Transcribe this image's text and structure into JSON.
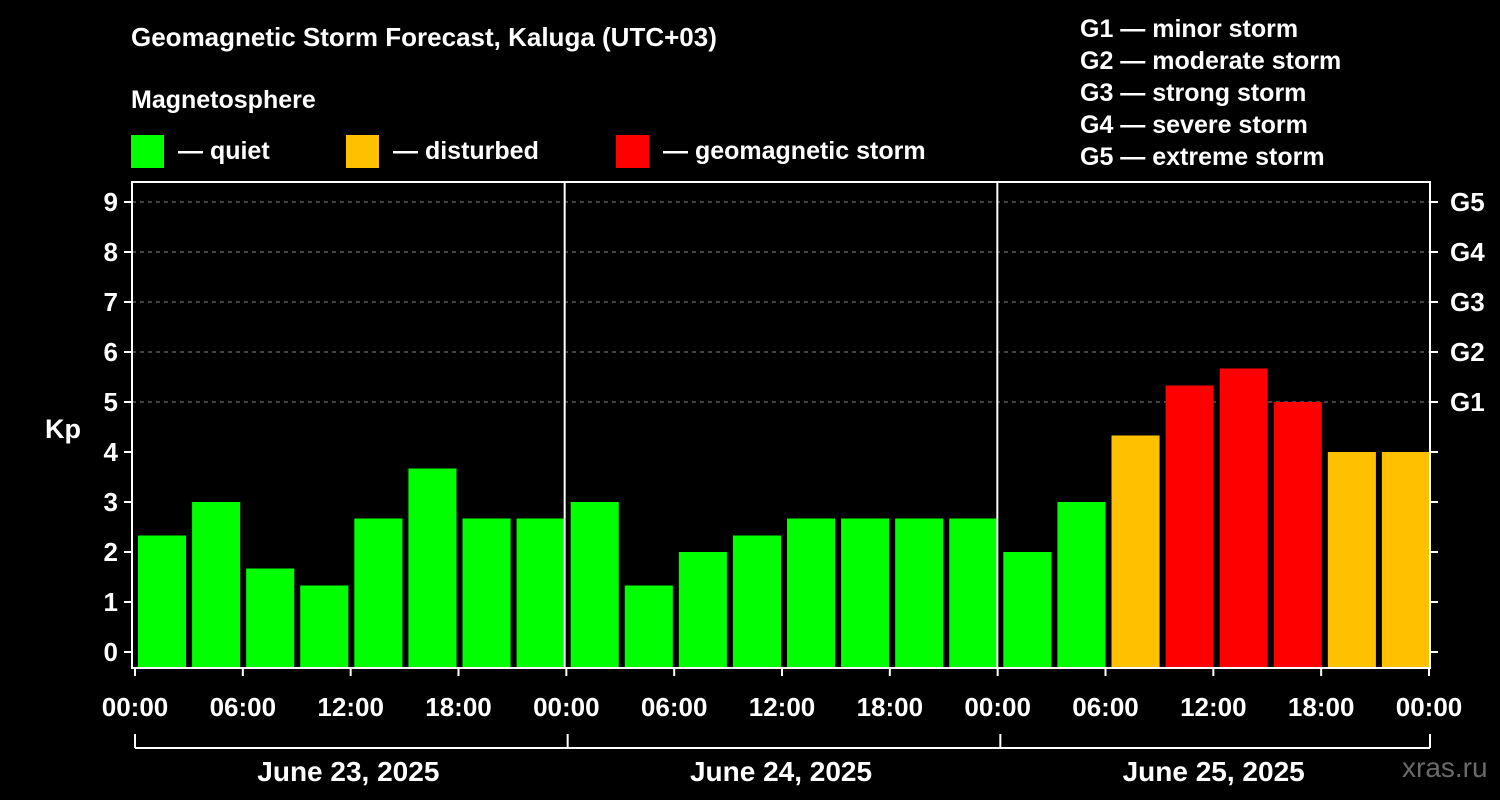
{
  "title": "Geomagnetic Storm Forecast, Kaluga (UTC+03)",
  "subtitle": "Magnetosphere",
  "legend": [
    {
      "label": "— quiet",
      "color": "#00ff00"
    },
    {
      "label": "— disturbed",
      "color": "#ffc000"
    },
    {
      "label": "— geomagnetic storm",
      "color": "#ff0000"
    }
  ],
  "storm_levels": [
    "G1 — minor storm",
    "G2 — moderate storm",
    "G3 — strong storm",
    "G4 — severe storm",
    "G5 — extreme storm"
  ],
  "watermark": "xras.ru",
  "chart_data": {
    "type": "bar",
    "ylabel": "Kp",
    "ylim": [
      0,
      9
    ],
    "yticks": [
      0,
      1,
      2,
      3,
      4,
      5,
      6,
      7,
      8,
      9
    ],
    "right_axis": [
      {
        "kp": 5,
        "label": "G1"
      },
      {
        "kp": 6,
        "label": "G2"
      },
      {
        "kp": 7,
        "label": "G3"
      },
      {
        "kp": 8,
        "label": "G4"
      },
      {
        "kp": 9,
        "label": "G5"
      }
    ],
    "xtick_labels": [
      "00:00",
      "06:00",
      "12:00",
      "18:00",
      "00:00",
      "06:00",
      "12:00",
      "18:00",
      "00:00",
      "06:00",
      "12:00",
      "18:00",
      "00:00"
    ],
    "days": [
      "June 23, 2025",
      "June 24, 2025",
      "June 25, 2025"
    ],
    "categories": [
      "Jun 23 00-03",
      "Jun 23 03-06",
      "Jun 23 06-09",
      "Jun 23 09-12",
      "Jun 23 12-15",
      "Jun 23 15-18",
      "Jun 23 18-21",
      "Jun 23 21-24",
      "Jun 24 00-03",
      "Jun 24 03-06",
      "Jun 24 06-09",
      "Jun 24 09-12",
      "Jun 24 12-15",
      "Jun 24 15-18",
      "Jun 24 18-21",
      "Jun 24 21-24",
      "Jun 25 00-03",
      "Jun 25 03-06",
      "Jun 25 06-09",
      "Jun 25 09-12",
      "Jun 25 12-15",
      "Jun 25 15-18",
      "Jun 25 18-21",
      "Jun 25 21-24"
    ],
    "values": [
      2.33,
      3.0,
      1.67,
      1.33,
      2.67,
      3.67,
      2.67,
      2.67,
      3.0,
      1.33,
      2.0,
      2.33,
      2.67,
      2.67,
      2.67,
      2.67,
      2.0,
      3.0,
      4.33,
      5.33,
      5.67,
      5.0,
      4.0,
      4.0
    ],
    "levels": [
      "quiet",
      "quiet",
      "quiet",
      "quiet",
      "quiet",
      "quiet",
      "quiet",
      "quiet",
      "quiet",
      "quiet",
      "quiet",
      "quiet",
      "quiet",
      "quiet",
      "quiet",
      "quiet",
      "quiet",
      "quiet",
      "disturbed",
      "storm",
      "storm",
      "storm",
      "disturbed",
      "disturbed"
    ],
    "level_colors": {
      "quiet": "#00ff00",
      "disturbed": "#ffc000",
      "storm": "#ff0000"
    }
  }
}
